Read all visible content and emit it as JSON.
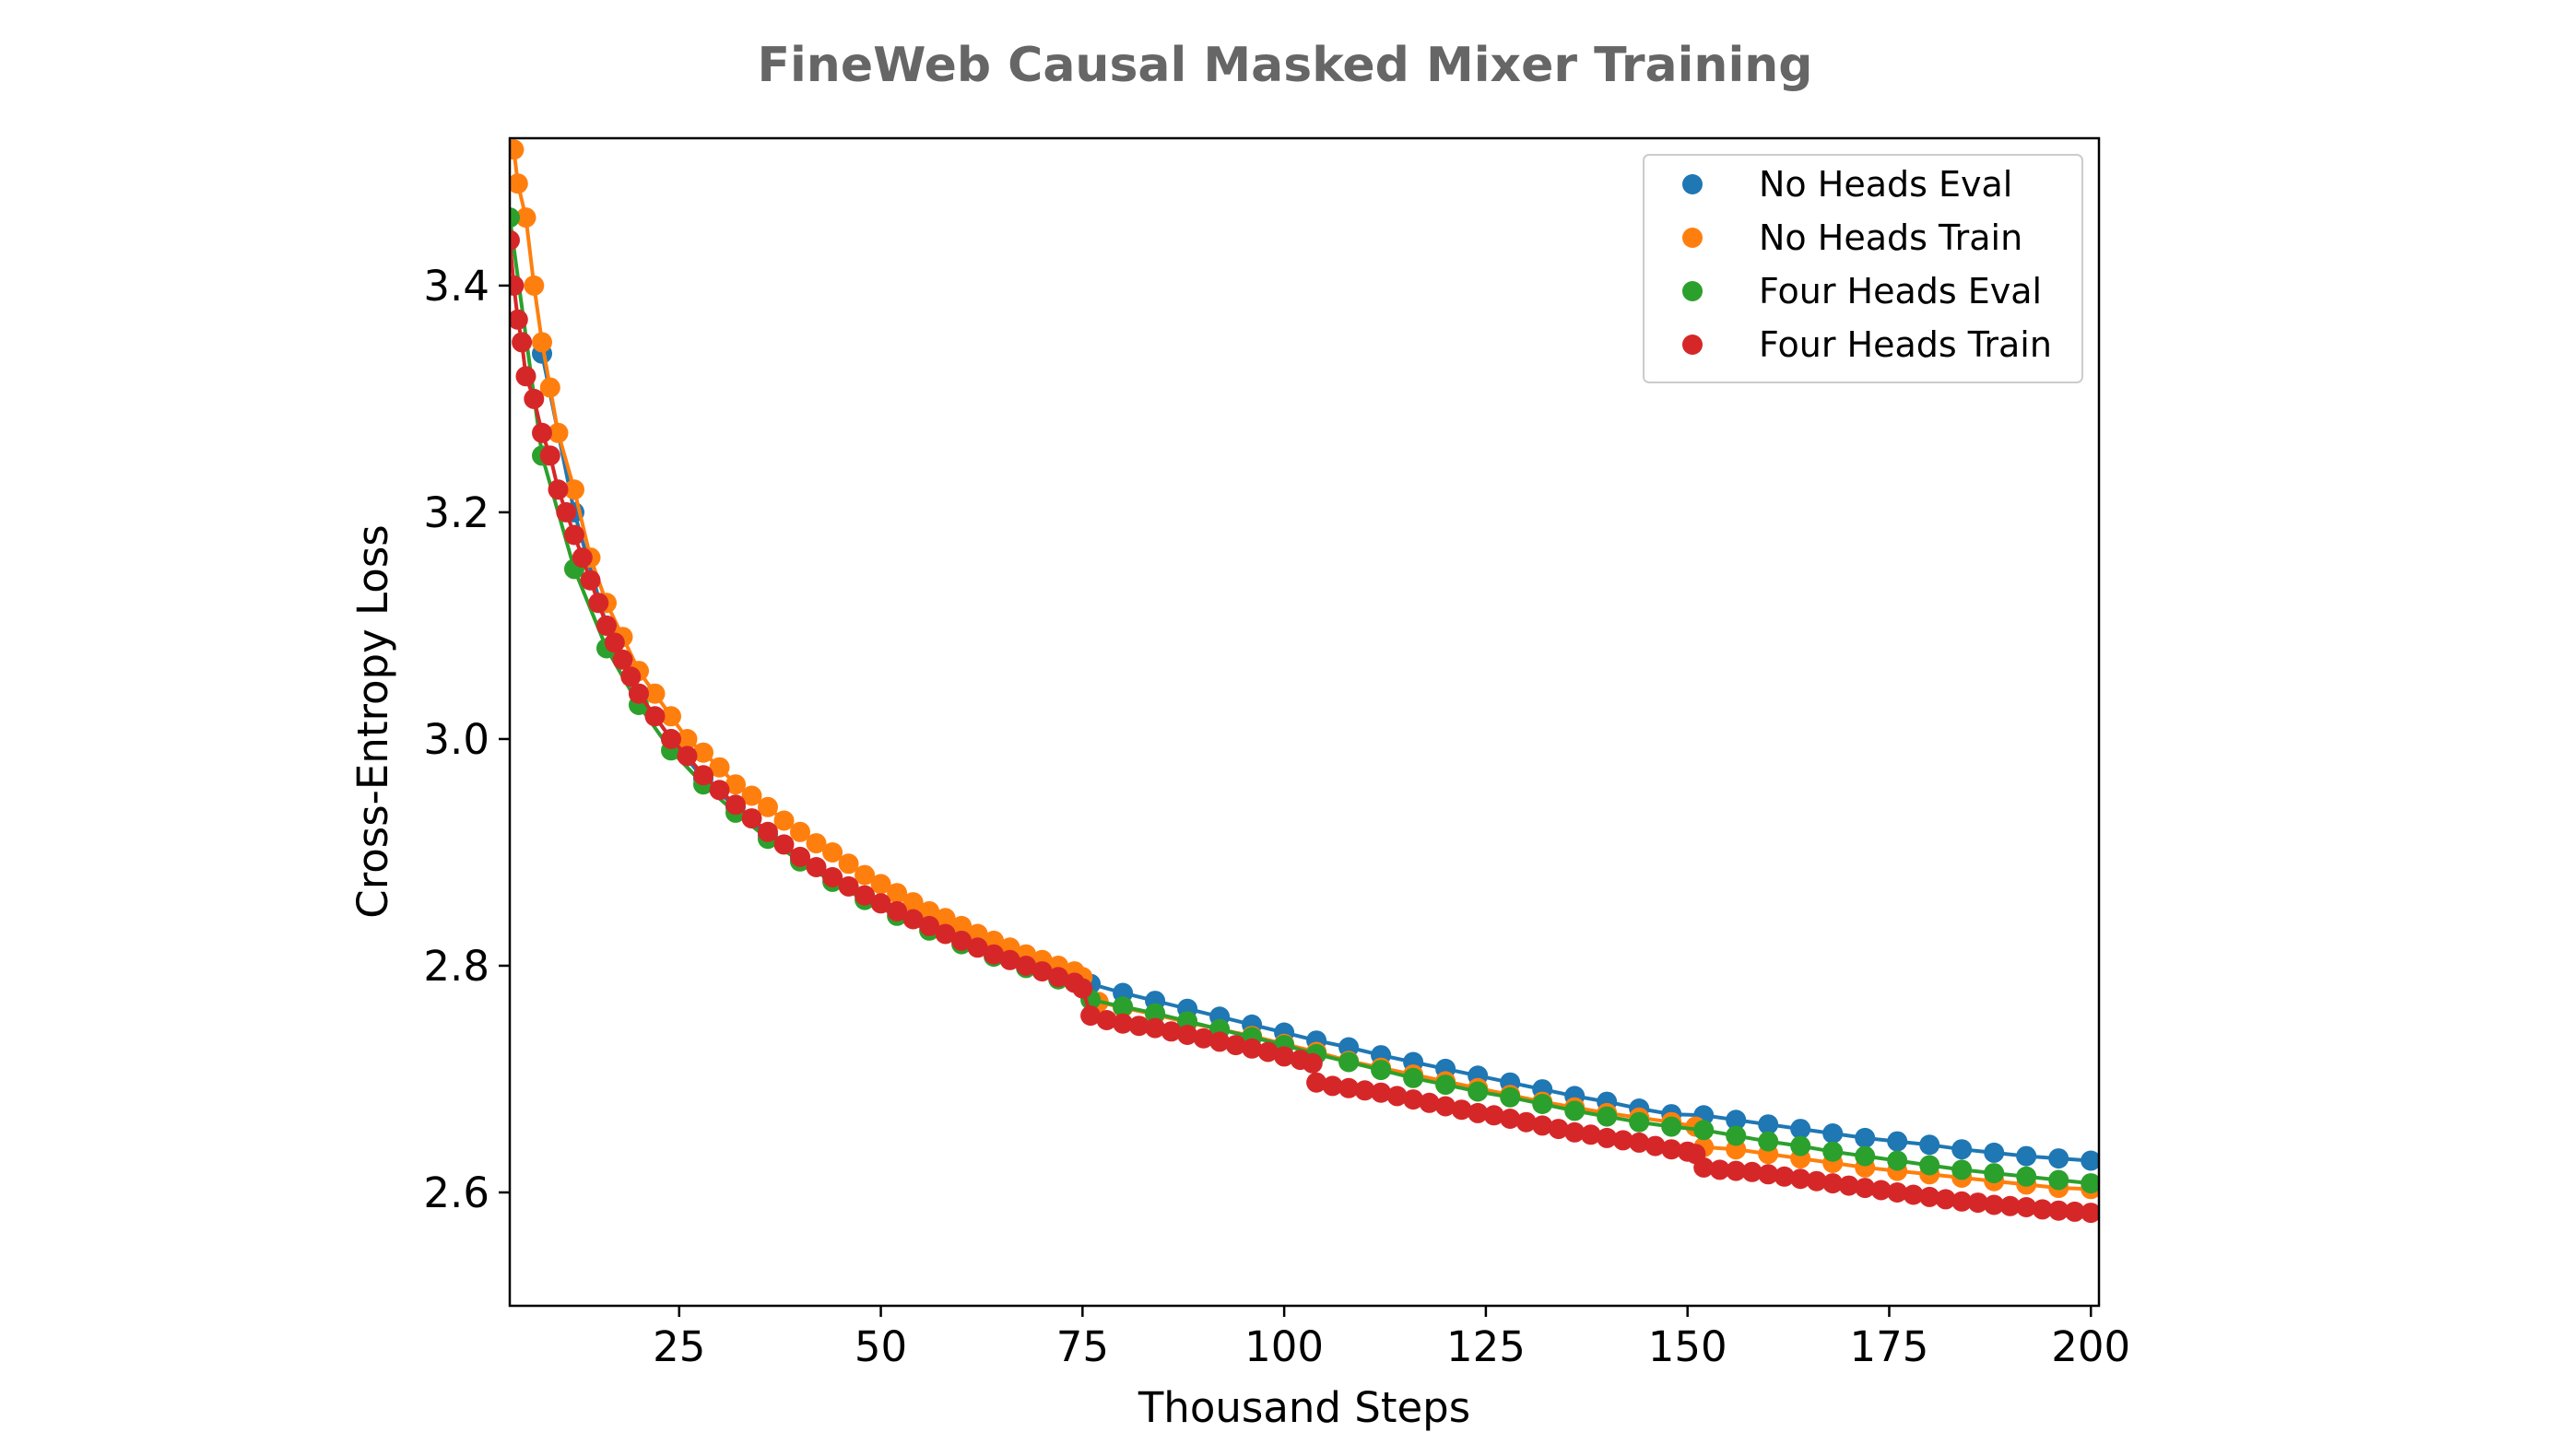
{
  "chart_data": {
    "type": "scatter",
    "title": "FineWeb Causal Masked Mixer Training",
    "xlabel": "Thousand Steps",
    "ylabel": "Cross-Entropy Loss",
    "xlim": [
      4,
      201
    ],
    "ylim": [
      2.5,
      3.53
    ],
    "xticks": [
      25,
      50,
      75,
      100,
      125,
      150,
      175,
      200
    ],
    "yticks": [
      2.6,
      2.8,
      3.0,
      3.2,
      3.4
    ],
    "xtick_labels": [
      "25",
      "50",
      "75",
      "100",
      "125",
      "150",
      "175",
      "200"
    ],
    "ytick_labels": [
      "2.6",
      "2.8",
      "3.0",
      "3.2",
      "3.4"
    ],
    "grid": false,
    "legend_position": "top-right",
    "series": [
      {
        "name": "No Heads Eval",
        "color": "#1f77b4",
        "points": [
          [
            8,
            3.34
          ],
          [
            12,
            3.2
          ],
          [
            16,
            3.1
          ],
          [
            20,
            3.04
          ],
          [
            24,
            3.0
          ],
          [
            28,
            2.965
          ],
          [
            32,
            2.94
          ],
          [
            36,
            2.915
          ],
          [
            40,
            2.895
          ],
          [
            44,
            2.878
          ],
          [
            48,
            2.862
          ],
          [
            52,
            2.848
          ],
          [
            56,
            2.835
          ],
          [
            60,
            2.823
          ],
          [
            64,
            2.812
          ],
          [
            68,
            2.802
          ],
          [
            72,
            2.792
          ],
          [
            76,
            2.784
          ],
          [
            80,
            2.776
          ],
          [
            84,
            2.769
          ],
          [
            88,
            2.762
          ],
          [
            92,
            2.755
          ],
          [
            96,
            2.748
          ],
          [
            100,
            2.741
          ],
          [
            104,
            2.734
          ],
          [
            108,
            2.728
          ],
          [
            112,
            2.721
          ],
          [
            116,
            2.715
          ],
          [
            120,
            2.709
          ],
          [
            124,
            2.703
          ],
          [
            128,
            2.697
          ],
          [
            132,
            2.691
          ],
          [
            136,
            2.685
          ],
          [
            140,
            2.68
          ],
          [
            144,
            2.674
          ],
          [
            148,
            2.669
          ],
          [
            152,
            2.668
          ],
          [
            156,
            2.664
          ],
          [
            160,
            2.66
          ],
          [
            164,
            2.656
          ],
          [
            168,
            2.652
          ],
          [
            172,
            2.648
          ],
          [
            176,
            2.645
          ],
          [
            180,
            2.642
          ],
          [
            184,
            2.638
          ],
          [
            188,
            2.635
          ],
          [
            192,
            2.632
          ],
          [
            196,
            2.63
          ],
          [
            200,
            2.628
          ]
        ]
      },
      {
        "name": "No Heads Train",
        "color": "#ff7f0e",
        "points": [
          [
            4.5,
            3.52
          ],
          [
            5,
            3.49
          ],
          [
            6,
            3.46
          ],
          [
            7,
            3.4
          ],
          [
            8,
            3.35
          ],
          [
            9,
            3.31
          ],
          [
            10,
            3.27
          ],
          [
            12,
            3.22
          ],
          [
            14,
            3.16
          ],
          [
            16,
            3.12
          ],
          [
            18,
            3.09
          ],
          [
            20,
            3.06
          ],
          [
            22,
            3.04
          ],
          [
            24,
            3.02
          ],
          [
            26,
            3.0
          ],
          [
            28,
            2.988
          ],
          [
            30,
            2.975
          ],
          [
            32,
            2.96
          ],
          [
            34,
            2.95
          ],
          [
            36,
            2.94
          ],
          [
            38,
            2.928
          ],
          [
            40,
            2.918
          ],
          [
            42,
            2.908
          ],
          [
            44,
            2.9
          ],
          [
            46,
            2.89
          ],
          [
            48,
            2.88
          ],
          [
            50,
            2.872
          ],
          [
            52,
            2.864
          ],
          [
            54,
            2.856
          ],
          [
            56,
            2.848
          ],
          [
            58,
            2.842
          ],
          [
            60,
            2.835
          ],
          [
            62,
            2.828
          ],
          [
            64,
            2.822
          ],
          [
            66,
            2.816
          ],
          [
            68,
            2.81
          ],
          [
            70,
            2.805
          ],
          [
            72,
            2.8
          ],
          [
            74,
            2.795
          ],
          [
            75,
            2.79
          ],
          [
            77,
            2.768
          ],
          [
            80,
            2.763
          ],
          [
            84,
            2.757
          ],
          [
            88,
            2.75
          ],
          [
            92,
            2.744
          ],
          [
            96,
            2.738
          ],
          [
            100,
            2.731
          ],
          [
            104,
            2.724
          ],
          [
            108,
            2.716
          ],
          [
            112,
            2.71
          ],
          [
            116,
            2.704
          ],
          [
            120,
            2.698
          ],
          [
            124,
            2.692
          ],
          [
            128,
            2.686
          ],
          [
            132,
            2.68
          ],
          [
            136,
            2.675
          ],
          [
            140,
            2.67
          ],
          [
            144,
            2.666
          ],
          [
            148,
            2.662
          ],
          [
            151,
            2.658
          ],
          [
            152,
            2.64
          ],
          [
            156,
            2.638
          ],
          [
            160,
            2.634
          ],
          [
            164,
            2.63
          ],
          [
            168,
            2.626
          ],
          [
            172,
            2.622
          ],
          [
            176,
            2.619
          ],
          [
            180,
            2.616
          ],
          [
            184,
            2.613
          ],
          [
            188,
            2.61
          ],
          [
            192,
            2.607
          ],
          [
            196,
            2.604
          ],
          [
            200,
            2.603
          ]
        ]
      },
      {
        "name": "Four Heads Eval",
        "color": "#2ca02c",
        "points": [
          [
            4,
            3.46
          ],
          [
            8,
            3.25
          ],
          [
            12,
            3.15
          ],
          [
            16,
            3.08
          ],
          [
            20,
            3.03
          ],
          [
            24,
            2.99
          ],
          [
            28,
            2.96
          ],
          [
            32,
            2.935
          ],
          [
            36,
            2.912
          ],
          [
            40,
            2.892
          ],
          [
            44,
            2.874
          ],
          [
            48,
            2.858
          ],
          [
            52,
            2.844
          ],
          [
            56,
            2.831
          ],
          [
            60,
            2.819
          ],
          [
            64,
            2.808
          ],
          [
            68,
            2.798
          ],
          [
            72,
            2.788
          ],
          [
            76,
            2.77
          ],
          [
            80,
            2.764
          ],
          [
            84,
            2.758
          ],
          [
            88,
            2.751
          ],
          [
            92,
            2.744
          ],
          [
            96,
            2.737
          ],
          [
            100,
            2.73
          ],
          [
            104,
            2.722
          ],
          [
            108,
            2.715
          ],
          [
            112,
            2.708
          ],
          [
            116,
            2.701
          ],
          [
            120,
            2.695
          ],
          [
            124,
            2.689
          ],
          [
            128,
            2.684
          ],
          [
            132,
            2.678
          ],
          [
            136,
            2.672
          ],
          [
            140,
            2.667
          ],
          [
            144,
            2.662
          ],
          [
            148,
            2.658
          ],
          [
            152,
            2.655
          ],
          [
            156,
            2.65
          ],
          [
            160,
            2.645
          ],
          [
            164,
            2.641
          ],
          [
            168,
            2.636
          ],
          [
            172,
            2.632
          ],
          [
            176,
            2.628
          ],
          [
            180,
            2.624
          ],
          [
            184,
            2.62
          ],
          [
            188,
            2.617
          ],
          [
            192,
            2.614
          ],
          [
            196,
            2.611
          ],
          [
            200,
            2.608
          ]
        ]
      },
      {
        "name": "Four Heads Train",
        "color": "#d62728",
        "points": [
          [
            4,
            3.44
          ],
          [
            4.5,
            3.4
          ],
          [
            5,
            3.37
          ],
          [
            5.5,
            3.35
          ],
          [
            6,
            3.32
          ],
          [
            7,
            3.3
          ],
          [
            8,
            3.27
          ],
          [
            9,
            3.25
          ],
          [
            10,
            3.22
          ],
          [
            11,
            3.2
          ],
          [
            12,
            3.18
          ],
          [
            13,
            3.16
          ],
          [
            14,
            3.14
          ],
          [
            15,
            3.12
          ],
          [
            16,
            3.1
          ],
          [
            17,
            3.085
          ],
          [
            18,
            3.07
          ],
          [
            19,
            3.055
          ],
          [
            20,
            3.04
          ],
          [
            22,
            3.02
          ],
          [
            24,
            3.0
          ],
          [
            26,
            2.985
          ],
          [
            28,
            2.968
          ],
          [
            30,
            2.955
          ],
          [
            32,
            2.942
          ],
          [
            34,
            2.93
          ],
          [
            36,
            2.918
          ],
          [
            38,
            2.907
          ],
          [
            40,
            2.896
          ],
          [
            42,
            2.887
          ],
          [
            44,
            2.878
          ],
          [
            46,
            2.87
          ],
          [
            48,
            2.862
          ],
          [
            50,
            2.855
          ],
          [
            52,
            2.848
          ],
          [
            54,
            2.841
          ],
          [
            56,
            2.835
          ],
          [
            58,
            2.828
          ],
          [
            60,
            2.822
          ],
          [
            62,
            2.816
          ],
          [
            64,
            2.81
          ],
          [
            66,
            2.805
          ],
          [
            68,
            2.8
          ],
          [
            70,
            2.795
          ],
          [
            72,
            2.79
          ],
          [
            74,
            2.785
          ],
          [
            75,
            2.78
          ],
          [
            76,
            2.756
          ],
          [
            78,
            2.752
          ],
          [
            80,
            2.749
          ],
          [
            82,
            2.747
          ],
          [
            84,
            2.745
          ],
          [
            86,
            2.742
          ],
          [
            88,
            2.739
          ],
          [
            90,
            2.736
          ],
          [
            92,
            2.733
          ],
          [
            94,
            2.73
          ],
          [
            96,
            2.727
          ],
          [
            98,
            2.724
          ],
          [
            100,
            2.72
          ],
          [
            102,
            2.717
          ],
          [
            103.5,
            2.714
          ],
          [
            104,
            2.697
          ],
          [
            106,
            2.694
          ],
          [
            108,
            2.692
          ],
          [
            110,
            2.69
          ],
          [
            112,
            2.688
          ],
          [
            114,
            2.685
          ],
          [
            116,
            2.682
          ],
          [
            118,
            2.679
          ],
          [
            120,
            2.676
          ],
          [
            122,
            2.673
          ],
          [
            124,
            2.67
          ],
          [
            126,
            2.668
          ],
          [
            128,
            2.665
          ],
          [
            130,
            2.662
          ],
          [
            132,
            2.659
          ],
          [
            134,
            2.656
          ],
          [
            136,
            2.653
          ],
          [
            138,
            2.651
          ],
          [
            140,
            2.648
          ],
          [
            142,
            2.646
          ],
          [
            144,
            2.644
          ],
          [
            146,
            2.641
          ],
          [
            148,
            2.638
          ],
          [
            150,
            2.636
          ],
          [
            151,
            2.634
          ],
          [
            152,
            2.622
          ],
          [
            154,
            2.62
          ],
          [
            156,
            2.619
          ],
          [
            158,
            2.618
          ],
          [
            160,
            2.616
          ],
          [
            162,
            2.614
          ],
          [
            164,
            2.612
          ],
          [
            166,
            2.61
          ],
          [
            168,
            2.608
          ],
          [
            170,
            2.606
          ],
          [
            172,
            2.604
          ],
          [
            174,
            2.602
          ],
          [
            176,
            2.6
          ],
          [
            178,
            2.598
          ],
          [
            180,
            2.596
          ],
          [
            182,
            2.594
          ],
          [
            184,
            2.592
          ],
          [
            186,
            2.591
          ],
          [
            188,
            2.589
          ],
          [
            190,
            2.588
          ],
          [
            192,
            2.587
          ],
          [
            194,
            2.585
          ],
          [
            196,
            2.584
          ],
          [
            198,
            2.583
          ],
          [
            200,
            2.582
          ]
        ]
      }
    ]
  }
}
